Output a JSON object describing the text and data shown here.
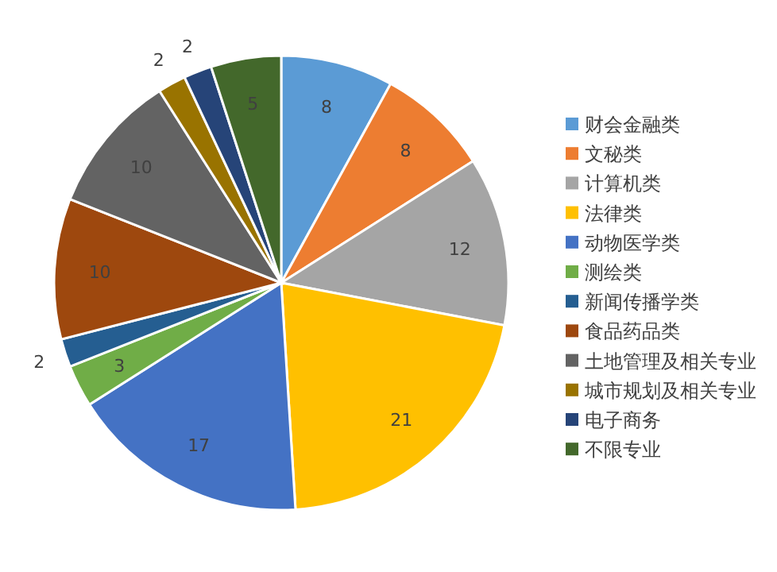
{
  "chart_data": {
    "type": "pie",
    "categories": [
      "财会金融类",
      "文秘类",
      "计算机类",
      "法律类",
      "动物医学类",
      "测绘类",
      "新闻传播学类",
      "食品药品类",
      "土地管理及相关专业",
      "城市规划及相关专业",
      "电子商务",
      "不限专业"
    ],
    "values": [
      8,
      8,
      12,
      21,
      17,
      3,
      2,
      10,
      10,
      2,
      2,
      5
    ],
    "colors": [
      "#5b9bd5",
      "#ed7d31",
      "#a5a5a5",
      "#ffc000",
      "#4472c4",
      "#70ad47",
      "#255e91",
      "#9e480e",
      "#636363",
      "#997300",
      "#264478",
      "#43682b"
    ],
    "data_labels": true,
    "legend": "right"
  }
}
